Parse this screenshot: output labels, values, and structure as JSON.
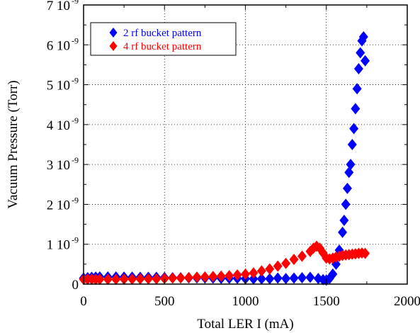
{
  "chart_data": {
    "type": "scatter",
    "title": "",
    "xlabel": "Total LER I (mA)",
    "ylabel": "Vacuum Pressure (Torr)",
    "xlim": [
      0,
      2000
    ],
    "ylim": [
      0,
      7e-09
    ],
    "grid": true,
    "grid_style": "dotted",
    "legend_position": "top-left",
    "x_ticks": [
      {
        "value": 0,
        "label": "0"
      },
      {
        "value": 500,
        "label": "500"
      },
      {
        "value": 1000,
        "label": "1000"
      },
      {
        "value": 1500,
        "label": "1500"
      },
      {
        "value": 2000,
        "label": "2000"
      }
    ],
    "y_ticks": [
      {
        "value": 0,
        "mant": "0",
        "exp": ""
      },
      {
        "value": 1e-09,
        "mant": "1 10",
        "exp": "-9"
      },
      {
        "value": 2e-09,
        "mant": "2 10",
        "exp": "-9"
      },
      {
        "value": 3e-09,
        "mant": "3 10",
        "exp": "-9"
      },
      {
        "value": 4e-09,
        "mant": "4 10",
        "exp": "-9"
      },
      {
        "value": 5e-09,
        "mant": "5 10",
        "exp": "-9"
      },
      {
        "value": 6e-09,
        "mant": "6 10",
        "exp": "-9"
      },
      {
        "value": 7e-09,
        "mant": "7 10",
        "exp": "-9"
      }
    ],
    "series": [
      {
        "name": "2 rf bucket pattern",
        "color": "#0000ff",
        "marker": "diamond",
        "x": [
          0,
          25,
          50,
          75,
          100,
          150,
          200,
          250,
          300,
          350,
          400,
          450,
          500,
          550,
          600,
          650,
          700,
          750,
          800,
          850,
          900,
          950,
          1000,
          1050,
          1100,
          1150,
          1200,
          1250,
          1300,
          1350,
          1400,
          1450,
          1480,
          1500,
          1520,
          1540,
          1560,
          1580,
          1600,
          1610,
          1620,
          1630,
          1640,
          1650,
          1660,
          1670,
          1680,
          1690,
          1700,
          1710,
          1720,
          1730,
          1740
        ],
        "y": [
          1.5e-10,
          1.6e-10,
          1.7e-10,
          1.75e-10,
          1.8e-10,
          1.8e-10,
          1.8e-10,
          1.75e-10,
          1.75e-10,
          1.7e-10,
          1.7e-10,
          1.7e-10,
          1.65e-10,
          1.6e-10,
          1.6e-10,
          1.55e-10,
          1.55e-10,
          1.55e-10,
          1.5e-10,
          1.45e-10,
          1.45e-10,
          1.45e-10,
          1.35e-10,
          1.3e-10,
          1.3e-10,
          1.35e-10,
          1.5e-10,
          1.4e-10,
          1.5e-10,
          1.6e-10,
          1.7e-10,
          1.4e-10,
          1.1e-10,
          1e-10,
          1.4e-10,
          2.5e-10,
          5e-10,
          8.5e-10,
          1.3e-09,
          1.6e-09,
          2e-09,
          2.4e-09,
          2.8e-09,
          3e-09,
          3.5e-09,
          3.9e-09,
          4.4e-09,
          4.9e-09,
          5.4e-09,
          5.8e-09,
          6.1e-09,
          6.2e-09,
          5.6e-09
        ]
      },
      {
        "name": "4 rf bucket pattern",
        "color": "#ff0000",
        "marker": "diamond",
        "x": [
          0,
          25,
          50,
          75,
          100,
          150,
          200,
          250,
          300,
          350,
          400,
          450,
          500,
          550,
          600,
          650,
          700,
          750,
          800,
          850,
          900,
          950,
          1000,
          1050,
          1100,
          1150,
          1200,
          1250,
          1300,
          1350,
          1400,
          1420,
          1440,
          1460,
          1480,
          1500,
          1520,
          1540,
          1560,
          1580,
          1600,
          1620,
          1640,
          1660,
          1680,
          1700,
          1720,
          1740
        ],
        "y": [
          1.2e-10,
          1.25e-10,
          1.25e-10,
          1.2e-10,
          1.2e-10,
          1.2e-10,
          1.2e-10,
          1.25e-10,
          1.25e-10,
          1.3e-10,
          1.3e-10,
          1.3e-10,
          1.4e-10,
          1.5e-10,
          1.55e-10,
          1.65e-10,
          1.75e-10,
          1.8e-10,
          1.9e-10,
          2e-10,
          2.1e-10,
          2.3e-10,
          2.5e-10,
          2.8e-10,
          3.3e-10,
          3.8e-10,
          4.5e-10,
          5.2e-10,
          6.2e-10,
          7e-10,
          8.2e-10,
          9e-10,
          9.5e-10,
          9e-10,
          7.8e-10,
          6.5e-10,
          6.3e-10,
          6.5e-10,
          6.8e-10,
          7e-10,
          7.2e-10,
          7.3e-10,
          7.4e-10,
          7.5e-10,
          7.6e-10,
          7.7e-10,
          7.8e-10,
          7.7e-10
        ]
      }
    ]
  }
}
